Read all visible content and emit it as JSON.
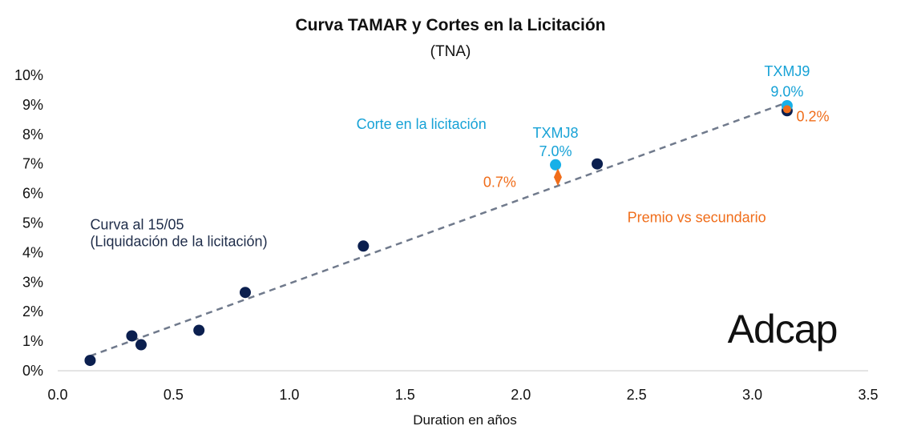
{
  "chart_data": {
    "type": "scatter",
    "title": "Curva TAMAR y Cortes en la Licitación",
    "subtitle": "(TNA)",
    "xlabel": "Duration en años",
    "ylabel": "",
    "xlim": [
      0,
      3.5
    ],
    "ylim": [
      0,
      10
    ],
    "xticks": [
      {
        "value": 0.0,
        "label": "0.0"
      },
      {
        "value": 0.5,
        "label": "0.5"
      },
      {
        "value": 1.0,
        "label": "1.0"
      },
      {
        "value": 1.5,
        "label": "1.5"
      },
      {
        "value": 2.0,
        "label": "2.0"
      },
      {
        "value": 2.5,
        "label": "2.5"
      },
      {
        "value": 3.0,
        "label": "3.0"
      },
      {
        "value": 3.5,
        "label": "3.5"
      }
    ],
    "yticks": [
      {
        "value": 0,
        "label": "0%"
      },
      {
        "value": 1,
        "label": "1%"
      },
      {
        "value": 2,
        "label": "2%"
      },
      {
        "value": 3,
        "label": "3%"
      },
      {
        "value": 4,
        "label": "4%"
      },
      {
        "value": 5,
        "label": "5%"
      },
      {
        "value": 6,
        "label": "6%"
      },
      {
        "value": 7,
        "label": "7%"
      },
      {
        "value": 8,
        "label": "8%"
      },
      {
        "value": 9,
        "label": "9%"
      },
      {
        "value": 10,
        "label": "10%"
      }
    ],
    "grid": false,
    "series": [
      {
        "color": "#0b1f4f",
        "points": [
          {
            "x": 0.14,
            "y": 0.35
          },
          {
            "x": 0.32,
            "y": 1.18
          },
          {
            "x": 0.36,
            "y": 0.88
          },
          {
            "x": 0.61,
            "y": 1.37
          },
          {
            "x": 0.81,
            "y": 2.65
          },
          {
            "x": 1.32,
            "y": 4.22
          },
          {
            "x": 2.33,
            "y": 7.0
          },
          {
            "x": 3.15,
            "y": 8.8
          }
        ]
      },
      {
        "color": "#17b0e8",
        "points": [
          {
            "x": 2.15,
            "y": 6.97
          },
          {
            "x": 3.15,
            "y": 8.97
          }
        ]
      },
      {
        "color": "#f06d1a",
        "points": [
          {
            "x": 2.16,
            "y": 6.55
          },
          {
            "x": 3.15,
            "y": 8.85
          }
        ]
      }
    ],
    "trendline": {
      "color": "#707a8c",
      "style": "dashed",
      "x": [
        0.14,
        3.15
      ],
      "y": [
        0.5,
        9.08
      ]
    },
    "annotations": [
      {
        "text": "Corte en la licitación",
        "x": 1.29,
        "y": 8.35,
        "color": "#17a2d6",
        "anchor": "start"
      },
      {
        "text": "TXMJ8",
        "x": 2.15,
        "y": 8.05,
        "color": "#17a2d6",
        "anchor": "middle"
      },
      {
        "text": "7.0%",
        "x": 2.15,
        "y": 7.42,
        "color": "#17a2d6",
        "anchor": "middle"
      },
      {
        "text": "0.7%",
        "x": 1.98,
        "y": 6.38,
        "color": "#f06d1a",
        "anchor": "end"
      },
      {
        "text": "TXMJ9",
        "x": 3.15,
        "y": 10.13,
        "color": "#17a2d6",
        "anchor": "middle"
      },
      {
        "text": "9.0%",
        "x": 3.15,
        "y": 9.45,
        "color": "#17a2d6",
        "anchor": "middle"
      },
      {
        "text": "0.2%",
        "x": 3.19,
        "y": 8.6,
        "color": "#f06d1a",
        "anchor": "start"
      },
      {
        "text": "Premio vs secundario",
        "x": 2.46,
        "y": 5.19,
        "color": "#f06d1a",
        "anchor": "start"
      },
      {
        "text": "Curva al 15/05",
        "x": 0.14,
        "y": 4.95,
        "color": "#1f2d4a",
        "anchor": "start"
      },
      {
        "text": "(Liquidación de la licitación)",
        "x": 0.14,
        "y": 4.38,
        "color": "#1f2d4a",
        "anchor": "start"
      }
    ]
  },
  "logo": {
    "text": "Adcap"
  }
}
